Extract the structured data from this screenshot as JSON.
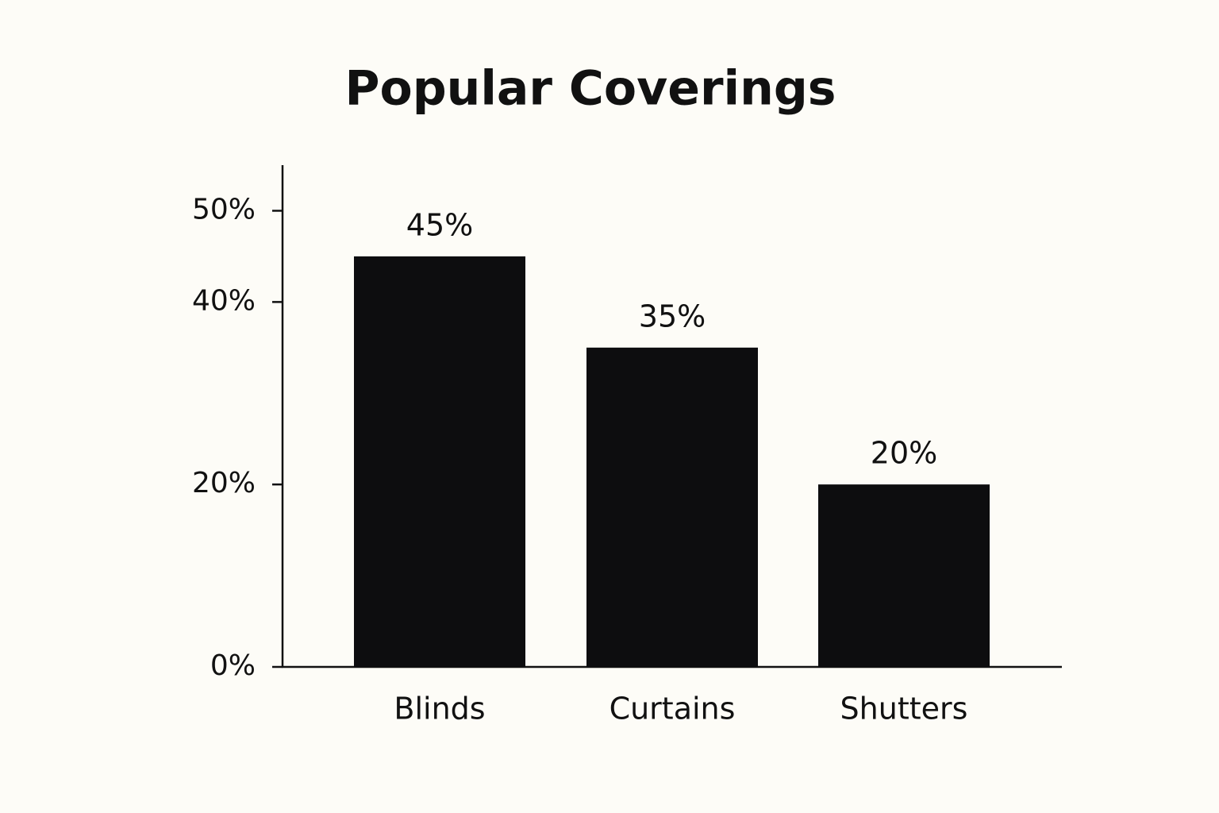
{
  "chart_data": {
    "type": "bar",
    "title": "Popular Coverings",
    "categories": [
      "Blinds",
      "Curtains",
      "Shutters"
    ],
    "values": [
      45,
      35,
      20
    ],
    "value_labels": [
      "45%",
      "35%",
      "20%"
    ],
    "color": "#0d0d0f",
    "ylim": [
      0,
      55
    ],
    "yticks": [
      {
        "value": 0,
        "label": "0%"
      },
      {
        "value": 20,
        "label": "20%"
      },
      {
        "value": 40,
        "label": "40%"
      },
      {
        "value": 50,
        "label": "50%"
      }
    ],
    "grid": false
  }
}
